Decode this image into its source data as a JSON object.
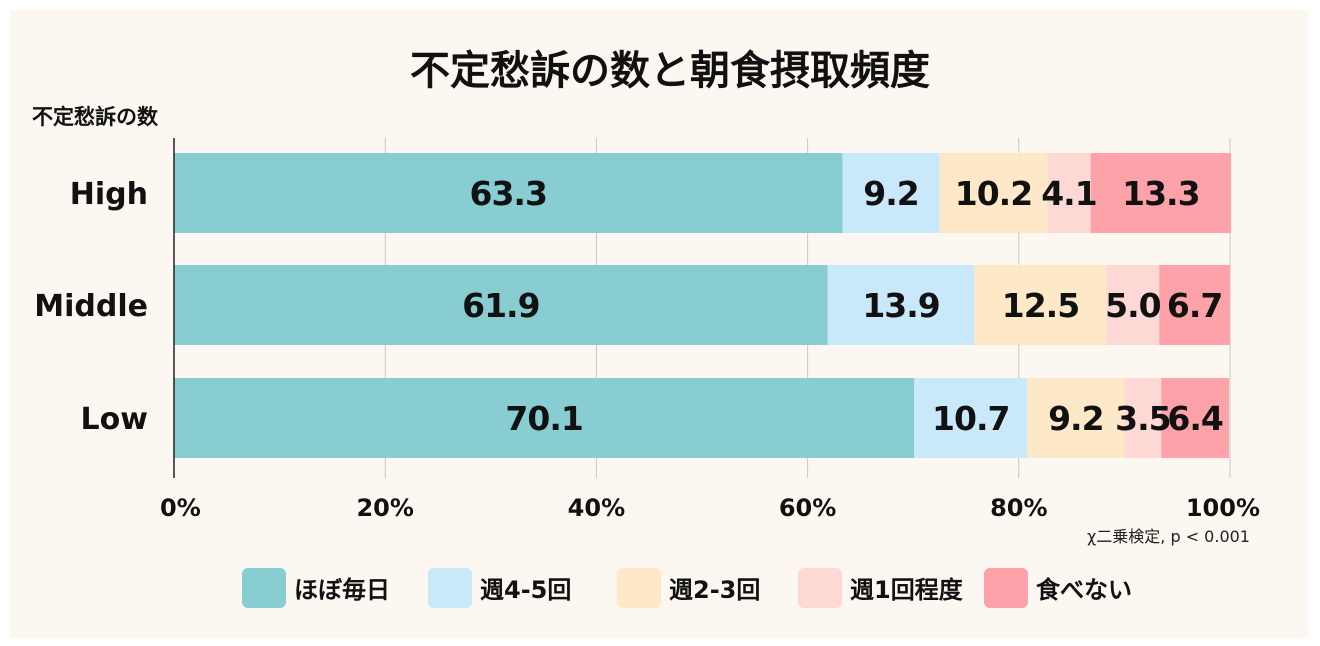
{
  "chart_data": {
    "type": "bar",
    "orientation": "horizontal",
    "stacked": true,
    "title": "不定愁訴の数と朝食摂取頻度",
    "ylabel": "不定愁訴の数",
    "xlabel": "",
    "categories": [
      "High",
      "Middle",
      "Low"
    ],
    "series": [
      {
        "name": "ほぼ毎日",
        "color": "#88cdd1",
        "values": [
          63.3,
          61.9,
          70.1
        ],
        "labels": [
          "63.3",
          "61.9",
          "70.1"
        ]
      },
      {
        "name": "週4-5回",
        "color": "#c9e9fb",
        "values": [
          9.2,
          13.9,
          10.7
        ],
        "labels": [
          "9.2",
          "13.9",
          "10.7"
        ]
      },
      {
        "name": "週2-3回",
        "color": "#fde9c8",
        "values": [
          10.2,
          12.5,
          9.2
        ],
        "labels": [
          "10.2",
          "12.5",
          "9.2"
        ]
      },
      {
        "name": "週1回程度",
        "color": "#fdd8d4",
        "values": [
          4.1,
          5.0,
          3.5
        ],
        "labels": [
          "4.1",
          "5.0",
          "3.5"
        ]
      },
      {
        "name": "食べない",
        "color": "#fca2a8",
        "values": [
          13.3,
          6.7,
          6.4
        ],
        "labels": [
          "13.3",
          "6.7",
          "6.4"
        ]
      }
    ],
    "xlim": [
      0,
      100
    ],
    "xticks": [
      "0%",
      "20%",
      "40%",
      "60%",
      "80%",
      "100%"
    ],
    "grid": "vertical",
    "legend_position": "bottom",
    "annotation": "χ二乗検定, p < 0.001"
  }
}
